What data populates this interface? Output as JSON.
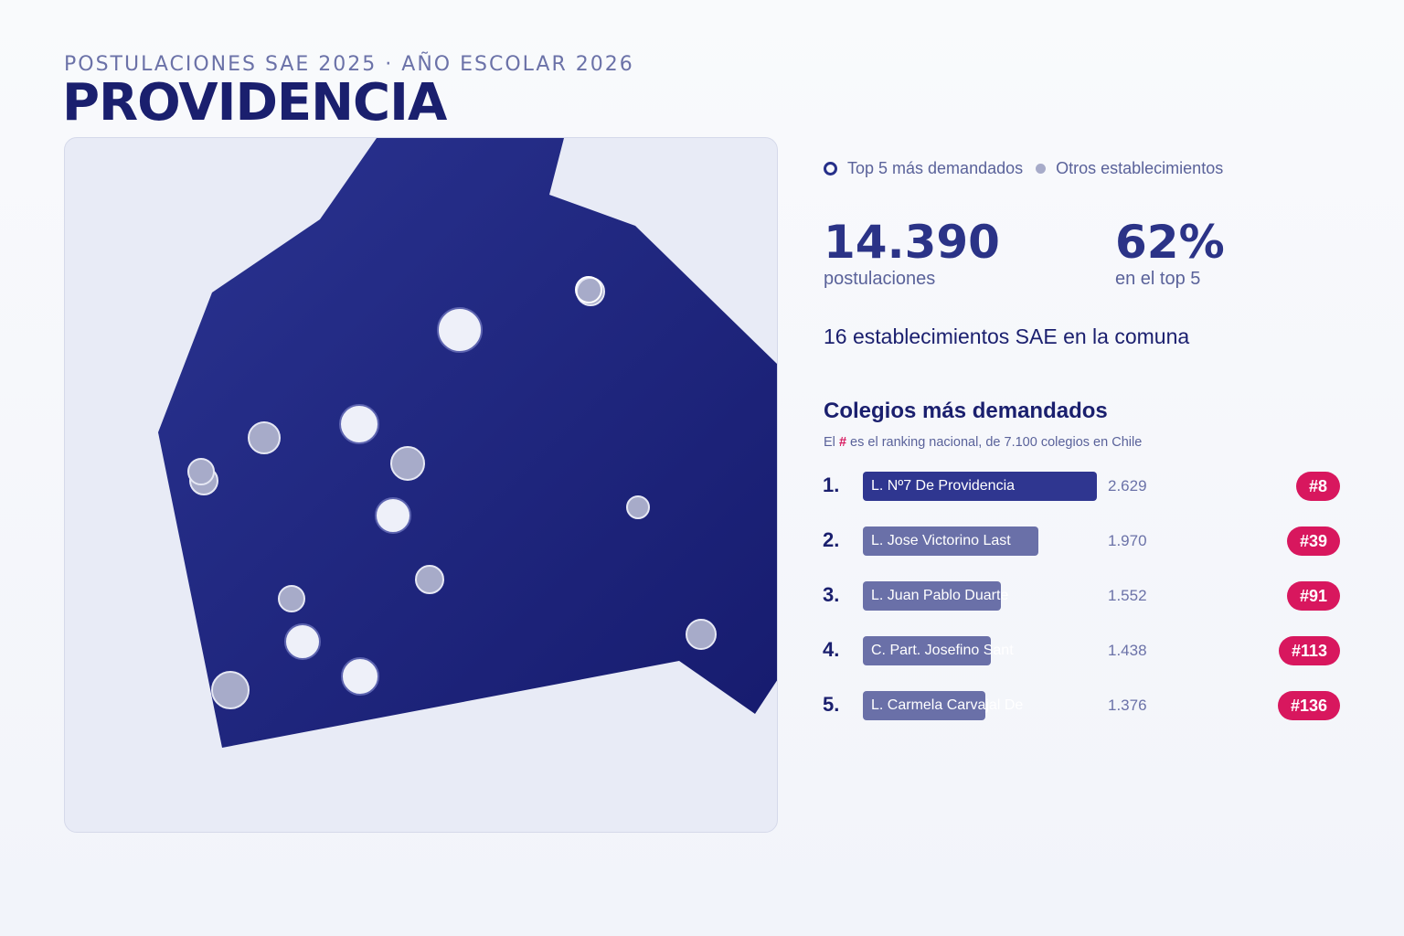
{
  "header": {
    "subtitle": "POSTULACIONES SAE 2025 · AÑO ESCOLAR 2026",
    "title": "PROVIDENCIA"
  },
  "legend": {
    "top5": "Top 5 más demandados",
    "others": "Otros establecimientos"
  },
  "stats": {
    "applications_value": "14.390",
    "applications_label": "postulaciones",
    "top5_share_value": "62%",
    "top5_share_label": "en el top 5",
    "schools_count_text": "16 establecimientos SAE en la comuna"
  },
  "ranking": {
    "title": "Colegios más demandados",
    "note_prefix": "El",
    "note_hash": "#",
    "note_suffix": "es el ranking nacional, de 7.100 colegios en Chile",
    "items": [
      {
        "rank": "1.",
        "name": "L. Nº7 De Providencia",
        "applications": "2.629",
        "value": 2629,
        "national_rank": "#8"
      },
      {
        "rank": "2.",
        "name": "L. Jose Victorino Last",
        "applications": "1.970",
        "value": 1970,
        "national_rank": "#39"
      },
      {
        "rank": "3.",
        "name": "L. Juan Pablo Duarte",
        "applications": "1.552",
        "value": 1552,
        "national_rank": "#91"
      },
      {
        "rank": "4.",
        "name": "C. Part. Josefino Sant",
        "applications": "1.438",
        "value": 1438,
        "national_rank": "#113"
      },
      {
        "rank": "5.",
        "name": "L. Carmela Carvajal De",
        "applications": "1.376",
        "value": 1376,
        "national_rank": "#136"
      }
    ]
  },
  "colors": {
    "commune_fill": "#232a82",
    "top5_marker": "#eef0f9",
    "other_marker": "#a7abc9",
    "badge": "#d8175e",
    "bar_first": "#2f3690",
    "bar_other": "#6a70a8"
  }
}
